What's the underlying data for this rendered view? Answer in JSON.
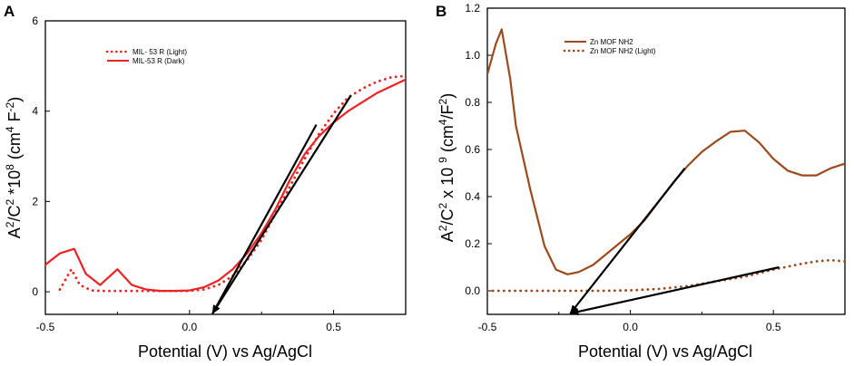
{
  "colors": {
    "mil_red": "#ee2222",
    "zn_brown": "#9c4a1c",
    "arrow": "#000000",
    "axis": "#000000"
  },
  "chart_data": [
    {
      "type": "line",
      "panel_label": "A",
      "xlabel": "Potential (V) vs Ag/AgCl",
      "ylabel": {
        "p1": "A",
        "s1": "2",
        "p2": "/C",
        "s2": "2",
        "p3": " *10",
        "s3": "8",
        "p4": " (cm",
        "s4": "4",
        "p5": " F",
        "s5": "-2",
        "p6": ")"
      },
      "xlim": [
        -0.5,
        0.75
      ],
      "ylim": [
        -0.5,
        6
      ],
      "xticks": [
        -0.5,
        0.0,
        0.5
      ],
      "xtick_labels": [
        "-0.5",
        "0.0",
        "0.5"
      ],
      "yticks": [
        0,
        2,
        4,
        6
      ],
      "ytick_labels": [
        "0",
        "2",
        "4",
        "6"
      ],
      "legend": {
        "position": "top-left"
      },
      "series": [
        {
          "name": "MIL- 53 R (Light)",
          "style": "dotted",
          "points": [
            [
              -0.45,
              0.05
            ],
            [
              -0.41,
              0.5
            ],
            [
              -0.38,
              0.15
            ],
            [
              -0.34,
              0.03
            ],
            [
              -0.3,
              0.02
            ],
            [
              -0.25,
              0.02
            ],
            [
              -0.2,
              0.02
            ],
            [
              -0.1,
              0.02
            ],
            [
              0.0,
              0.02
            ],
            [
              0.05,
              0.05
            ],
            [
              0.1,
              0.15
            ],
            [
              0.15,
              0.35
            ],
            [
              0.2,
              0.7
            ],
            [
              0.25,
              1.15
            ],
            [
              0.3,
              1.75
            ],
            [
              0.35,
              2.35
            ],
            [
              0.4,
              2.95
            ],
            [
              0.45,
              3.5
            ],
            [
              0.5,
              3.95
            ],
            [
              0.55,
              4.3
            ],
            [
              0.6,
              4.5
            ],
            [
              0.65,
              4.65
            ],
            [
              0.7,
              4.75
            ],
            [
              0.75,
              4.78
            ]
          ]
        },
        {
          "name": "MIL-53 R (Dark)",
          "style": "solid",
          "points": [
            [
              -0.5,
              0.6
            ],
            [
              -0.45,
              0.85
            ],
            [
              -0.4,
              0.95
            ],
            [
              -0.36,
              0.4
            ],
            [
              -0.31,
              0.15
            ],
            [
              -0.25,
              0.5
            ],
            [
              -0.2,
              0.15
            ],
            [
              -0.15,
              0.05
            ],
            [
              -0.1,
              0.02
            ],
            [
              -0.05,
              0.02
            ],
            [
              0.0,
              0.03
            ],
            [
              0.05,
              0.1
            ],
            [
              0.1,
              0.25
            ],
            [
              0.15,
              0.5
            ],
            [
              0.2,
              0.85
            ],
            [
              0.25,
              1.3
            ],
            [
              0.3,
              1.85
            ],
            [
              0.35,
              2.5
            ],
            [
              0.4,
              3.05
            ],
            [
              0.45,
              3.45
            ],
            [
              0.5,
              3.75
            ],
            [
              0.55,
              4.0
            ],
            [
              0.6,
              4.2
            ],
            [
              0.65,
              4.4
            ],
            [
              0.7,
              4.55
            ],
            [
              0.75,
              4.7
            ]
          ]
        }
      ],
      "arrows": [
        {
          "from": [
            0.44,
            3.7
          ],
          "to": [
            0.08,
            -0.5
          ]
        },
        {
          "from": [
            0.56,
            4.35
          ],
          "to": [
            0.08,
            -0.5
          ]
        }
      ]
    },
    {
      "type": "line",
      "panel_label": "B",
      "xlabel": "Potential (V) vs Ag/AgCl",
      "ylabel": {
        "p1": "A",
        "s1": "2",
        "p2": "/C",
        "s2": "2",
        "p3": " x 10 ",
        "s3": "9",
        "p4": " (cm",
        "s4": "4",
        "p5": "/F",
        "s5": "2",
        "p6": ")"
      },
      "xlim": [
        -0.5,
        0.75
      ],
      "ylim": [
        -0.1,
        1.2
      ],
      "xticks": [
        -0.5,
        0.0,
        0.5
      ],
      "xtick_labels": [
        "-0.5",
        "0.0",
        "0.5"
      ],
      "yticks": [
        0.0,
        0.2,
        0.4,
        0.6,
        0.8,
        1.0,
        1.2
      ],
      "ytick_labels": [
        "0.0",
        "0.2",
        "0.4",
        "0.6",
        "0.8",
        "1.0",
        "1.2"
      ],
      "legend": {
        "position": "top-center"
      },
      "series": [
        {
          "name": "Zn MOF NH2",
          "style": "solid",
          "points": [
            [
              -0.5,
              0.92
            ],
            [
              -0.47,
              1.05
            ],
            [
              -0.45,
              1.11
            ],
            [
              -0.42,
              0.9
            ],
            [
              -0.4,
              0.7
            ],
            [
              -0.35,
              0.43
            ],
            [
              -0.3,
              0.19
            ],
            [
              -0.26,
              0.09
            ],
            [
              -0.22,
              0.07
            ],
            [
              -0.18,
              0.08
            ],
            [
              -0.13,
              0.11
            ],
            [
              -0.08,
              0.16
            ],
            [
              -0.03,
              0.21
            ],
            [
              0.0,
              0.24
            ],
            [
              0.05,
              0.3
            ],
            [
              0.1,
              0.38
            ],
            [
              0.15,
              0.46
            ],
            [
              0.2,
              0.53
            ],
            [
              0.25,
              0.59
            ],
            [
              0.3,
              0.635
            ],
            [
              0.35,
              0.675
            ],
            [
              0.4,
              0.68
            ],
            [
              0.45,
              0.63
            ],
            [
              0.5,
              0.56
            ],
            [
              0.55,
              0.51
            ],
            [
              0.6,
              0.49
            ],
            [
              0.65,
              0.49
            ],
            [
              0.7,
              0.52
            ],
            [
              0.75,
              0.54
            ]
          ]
        },
        {
          "name": "Zn MOF NH2 (Light)",
          "style": "dotted",
          "points": [
            [
              -0.5,
              0.0
            ],
            [
              -0.4,
              0.0
            ],
            [
              -0.3,
              0.0
            ],
            [
              -0.2,
              0.0
            ],
            [
              -0.1,
              0.0
            ],
            [
              0.0,
              0.002
            ],
            [
              0.1,
              0.008
            ],
            [
              0.2,
              0.02
            ],
            [
              0.3,
              0.04
            ],
            [
              0.4,
              0.06
            ],
            [
              0.5,
              0.09
            ],
            [
              0.6,
              0.115
            ],
            [
              0.65,
              0.125
            ],
            [
              0.7,
              0.13
            ],
            [
              0.75,
              0.125
            ]
          ]
        }
      ],
      "arrows": [
        {
          "from": [
            0.19,
            0.52
          ],
          "to": [
            -0.21,
            -0.13
          ]
        },
        {
          "from": [
            0.52,
            0.1
          ],
          "to": [
            -0.21,
            -0.13
          ]
        }
      ]
    }
  ]
}
